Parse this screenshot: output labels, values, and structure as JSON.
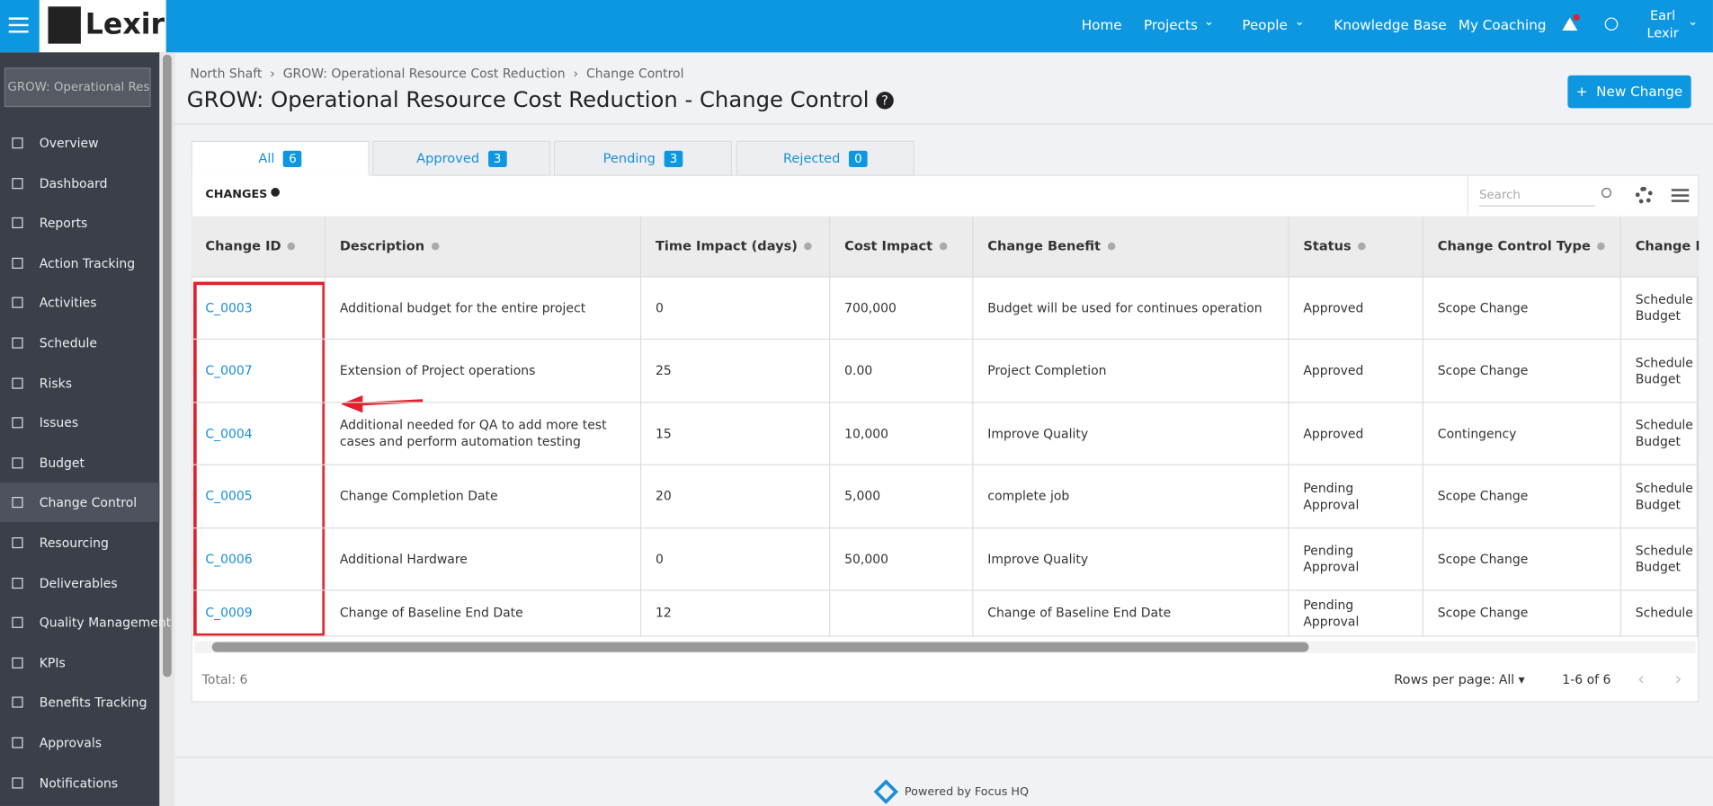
{
  "nav": {
    "logo": "Lexir",
    "items": [
      "Home",
      "Projects",
      "People",
      "Knowledge Base",
      "My Coaching"
    ],
    "user": "Earl Lexir"
  },
  "sidebar": {
    "search": "GROW: Operational Resourc",
    "items": [
      "Overview",
      "Dashboard",
      "Reports",
      "Action Tracking",
      "Activities",
      "Schedule",
      "Risks",
      "Issues",
      "Budget",
      "Change Control",
      "Resourcing",
      "Deliverables",
      "Quality Management",
      "KPIs",
      "Benefits Tracking",
      "Approvals",
      "Notifications"
    ],
    "active": "Change Control"
  },
  "breadcrumbs": [
    "North Shaft",
    "GROW: Operational Resource Cost Reduction",
    "Change Control"
  ],
  "title": "GROW: Operational Resource Cost Reduction - Change Control",
  "new_button": "New Change",
  "tabs": [
    {
      "label": "All",
      "count": "6"
    },
    {
      "label": "Approved",
      "count": "3"
    },
    {
      "label": "Pending",
      "count": "3"
    },
    {
      "label": "Rejected",
      "count": "0"
    }
  ],
  "table": {
    "caption": "CHANGES",
    "search": "Search",
    "headers": [
      "Change ID",
      "Description",
      "Time Impact (days)",
      "Cost Impact",
      "Change Benefit",
      "Status",
      "Change Control Type",
      "Change Impact"
    ],
    "rows": [
      [
        "C_0003",
        "Additional budget for the entire project",
        "0",
        "700,000",
        "Budget will be used for continues operation",
        "Approved",
        "Scope Change",
        "Schedule Budget"
      ],
      [
        "C_0007",
        "Extension of Project operations",
        "25",
        "0.00",
        "Project Completion",
        "Approved",
        "Scope Change",
        "Schedule Budget"
      ],
      [
        "C_0004",
        "Additional needed for QA to add more test cases and perform automation testing",
        "15",
        "10,000",
        "Improve Quality",
        "Approved",
        "Contingency",
        "Schedule Budget"
      ],
      [
        "C_0005",
        "Change Completion Date",
        "20",
        "5,000",
        "complete job",
        "Pending Approval",
        "Scope Change",
        "Schedule Budget"
      ],
      [
        "C_0006",
        "Additional Hardware",
        "0",
        "50,000",
        "Improve Quality",
        "Pending Approval",
        "Scope Change",
        "Schedule Budget"
      ],
      [
        "C_0009",
        "Change of Baseline End Date",
        "12",
        null,
        "Change of Baseline End Date",
        "Pending Approval",
        "Scope Change",
        "Schedule"
      ]
    ],
    "total": "Total: 6",
    "rows_per_page_label": "Rows per page:",
    "rows_per_page": "All",
    "range": "1-6 of 6"
  },
  "footer": "Powered by Focus HQ"
}
